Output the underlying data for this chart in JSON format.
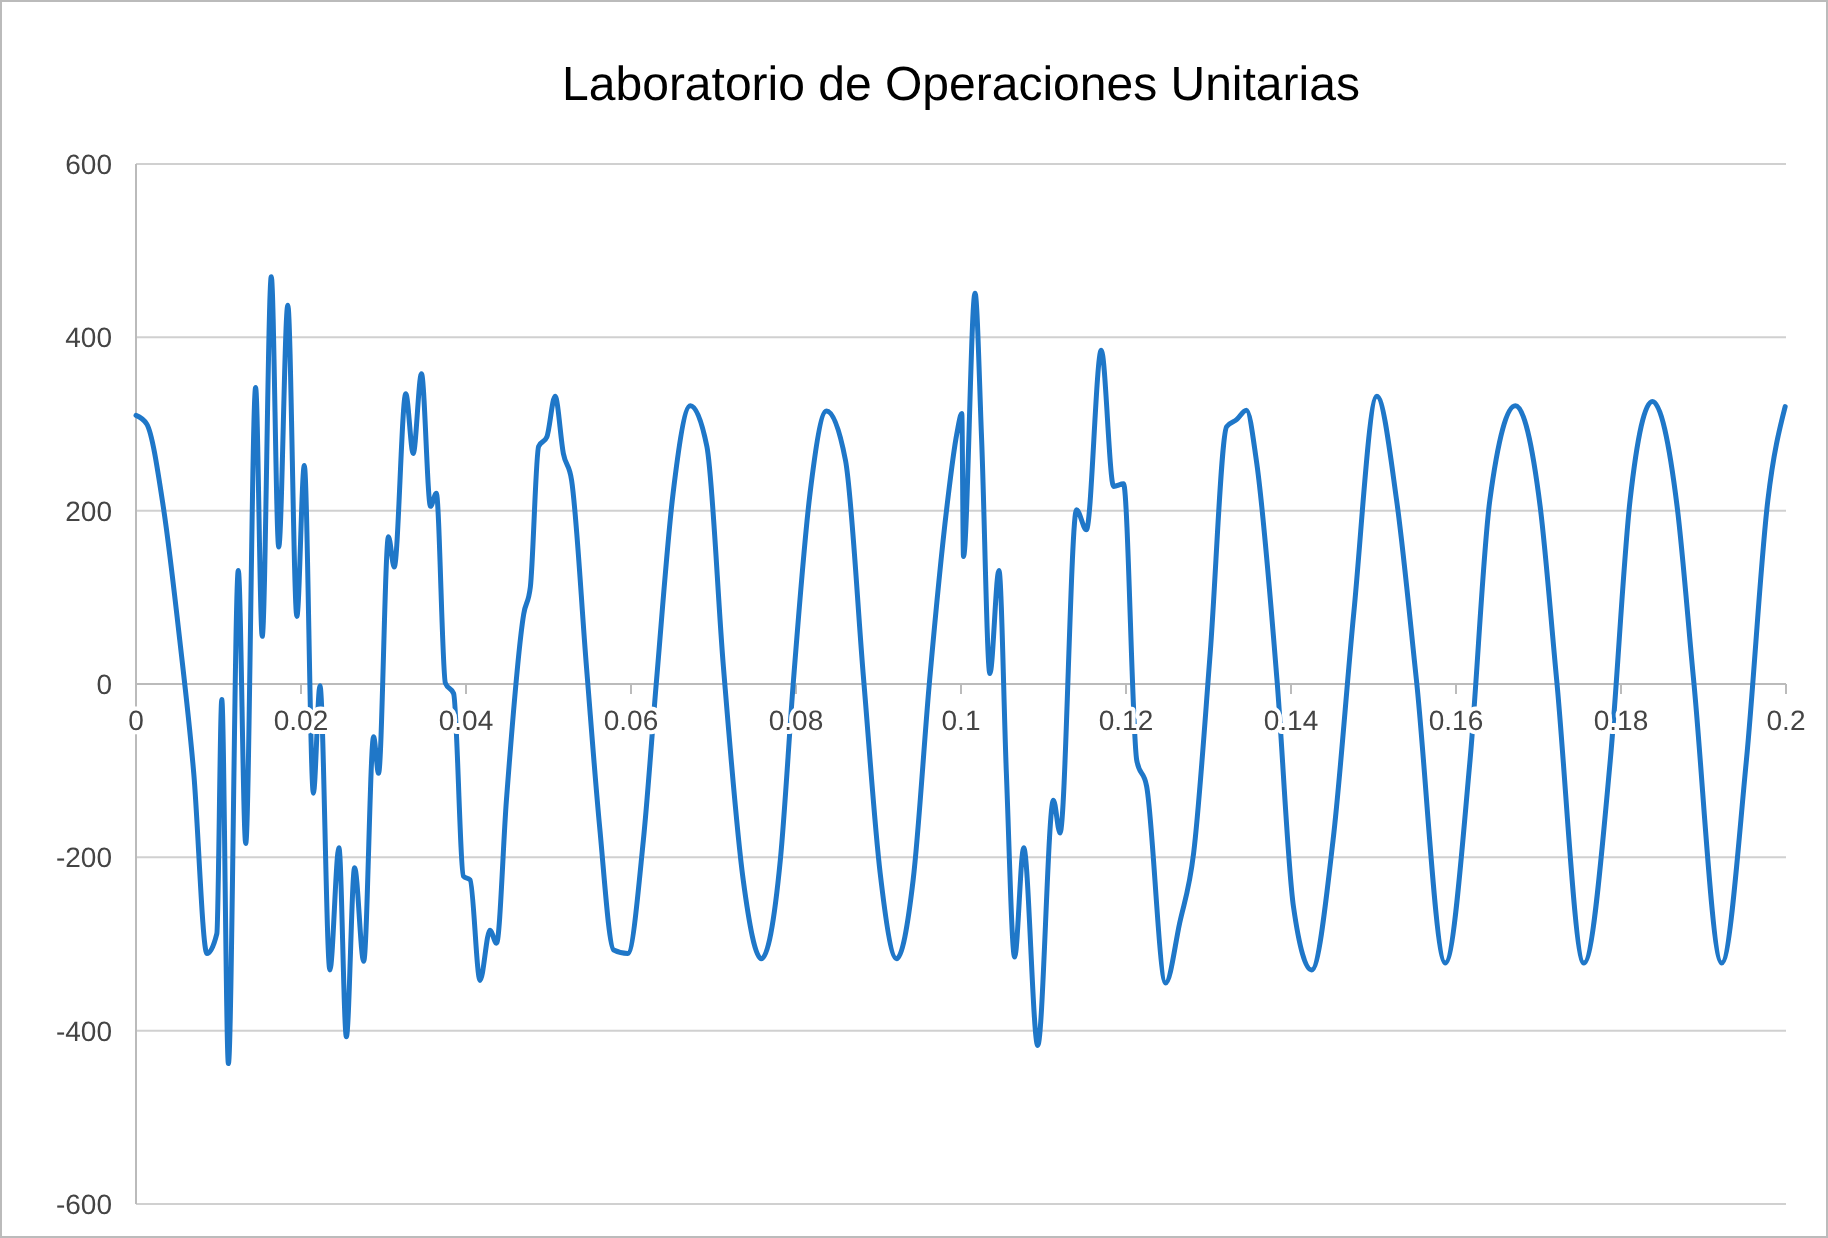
{
  "chart_data": {
    "type": "line",
    "title": "Laboratorio de Operaciones Unitarias",
    "xlim": [
      0,
      0.2
    ],
    "xticks": [
      0,
      0.02,
      0.04,
      0.06,
      0.08,
      0.1,
      0.12,
      0.14,
      0.16,
      0.18,
      0.2
    ],
    "ylim": [
      -600,
      600
    ],
    "yticks": [
      -600,
      -400,
      -200,
      0,
      200,
      400,
      600
    ],
    "grid": "y",
    "line_style": "solid",
    "marker": "none",
    "series": [
      {
        "color": "#1f77c8",
        "x": [
          0,
          0.0013,
          0.0033,
          0.0053,
          0.007,
          0.0086,
          0.0098,
          0.0104,
          0.0112,
          0.0124,
          0.0133,
          0.0145,
          0.0153,
          0.0164,
          0.0173,
          0.0184,
          0.0195,
          0.0204,
          0.0215,
          0.0223,
          0.0235,
          0.0246,
          0.0255,
          0.0265,
          0.0276,
          0.0288,
          0.0294,
          0.0306,
          0.0313,
          0.0327,
          0.0336,
          0.0346,
          0.0357,
          0.0364,
          0.0375,
          0.0385,
          0.0397,
          0.0405,
          0.0417,
          0.0429,
          0.0437,
          0.0449,
          0.047,
          0.0478,
          0.0488,
          0.0498,
          0.0508,
          0.0518,
          0.0528,
          0.0546,
          0.0562,
          0.0579,
          0.0596,
          0.0615,
          0.0631,
          0.0651,
          0.0672,
          0.0692,
          0.0712,
          0.0736,
          0.0758,
          0.0781,
          0.0797,
          0.0817,
          0.0837,
          0.086,
          0.0882,
          0.0902,
          0.0922,
          0.0942,
          0.0962,
          0.0983,
          0.0995,
          0.1001,
          0.1003,
          0.1017,
          0.1025,
          0.1035,
          0.1046,
          0.1055,
          0.1065,
          0.1076,
          0.1093,
          0.1112,
          0.112,
          0.114,
          0.1152,
          0.117,
          0.1185,
          0.1197,
          0.1213,
          0.1225,
          0.1248,
          0.1265,
          0.1282,
          0.1302,
          0.1322,
          0.1334,
          0.1346,
          0.1358,
          0.1383,
          0.1403,
          0.1425,
          0.1451,
          0.1476,
          0.1504,
          0.1528,
          0.1552,
          0.1587,
          0.1617,
          0.1641,
          0.1672,
          0.1702,
          0.1722,
          0.1755,
          0.1787,
          0.1811,
          0.1838,
          0.1868,
          0.1888,
          0.1922,
          0.1952,
          0.1978,
          0.1999
        ],
        "values": [
          310,
          300,
          205,
          51,
          -103,
          -311,
          -288,
          -18,
          -438,
          131,
          -184,
          342,
          55,
          470,
          158,
          437,
          78,
          252,
          -126,
          -2,
          -330,
          -189,
          -407,
          -212,
          -320,
          -61,
          -103,
          170,
          135,
          335,
          266,
          358,
          205,
          220,
          1,
          -11,
          -222,
          -226,
          -342,
          -284,
          -299,
          -134,
          81,
          112,
          274,
          285,
          332,
          266,
          235,
          20,
          -165,
          -307,
          -311,
          -180,
          5,
          220,
          321,
          274,
          20,
          -226,
          -317,
          -203,
          5,
          220,
          315,
          258,
          5,
          -218,
          -317,
          -226,
          5,
          205,
          289,
          312,
          147,
          451,
          282,
          12,
          131,
          -103,
          -315,
          -189,
          -417,
          -134,
          -172,
          201,
          178,
          385,
          228,
          231,
          -88,
          -118,
          -345,
          -276,
          -195,
          35,
          297,
          305,
          316,
          258,
          5,
          -257,
          -330,
          -180,
          81,
          332,
          212,
          5,
          -322,
          -88,
          212,
          321,
          205,
          5,
          -322,
          -88,
          212,
          326,
          205,
          5,
          -322,
          -88,
          212,
          320
        ]
      }
    ]
  }
}
